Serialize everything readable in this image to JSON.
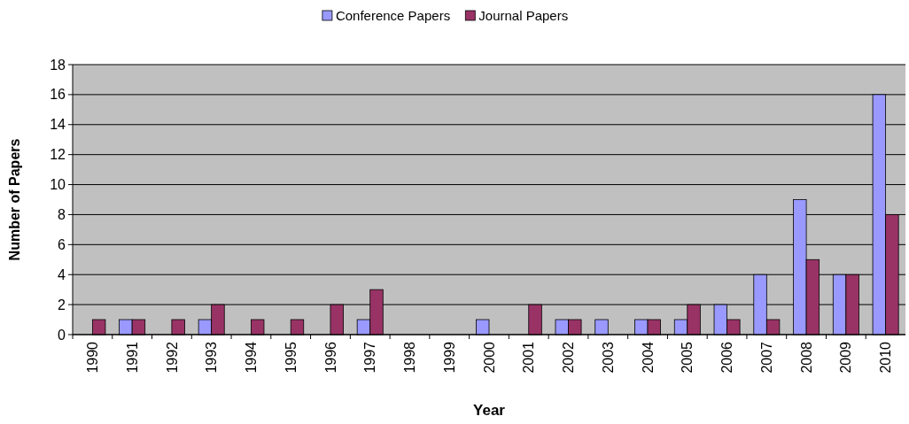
{
  "chart_data": {
    "type": "bar",
    "xlabel": "Year",
    "ylabel": "Number of Papers",
    "categories": [
      "1990",
      "1991",
      "1992",
      "1993",
      "1994",
      "1995",
      "1996",
      "1997",
      "1998",
      "1999",
      "2000",
      "2001",
      "2002",
      "2003",
      "2004",
      "2005",
      "2006",
      "2007",
      "2008",
      "2009",
      "2010"
    ],
    "series": [
      {
        "name": "Conference Papers",
        "color": "#9999ff",
        "values": [
          0,
          1,
          0,
          1,
          0,
          0,
          0,
          1,
          0,
          0,
          1,
          0,
          1,
          1,
          1,
          1,
          2,
          4,
          9,
          4,
          16
        ]
      },
      {
        "name": "Journal Papers",
        "color": "#993366",
        "values": [
          1,
          1,
          1,
          2,
          1,
          1,
          2,
          3,
          0,
          0,
          0,
          2,
          1,
          0,
          1,
          2,
          1,
          1,
          5,
          4,
          8
        ]
      }
    ],
    "ylim": [
      0,
      18
    ],
    "yticks": [
      0,
      2,
      4,
      6,
      8,
      10,
      12,
      14,
      16,
      18
    ],
    "grid": "y",
    "legend": "top"
  }
}
